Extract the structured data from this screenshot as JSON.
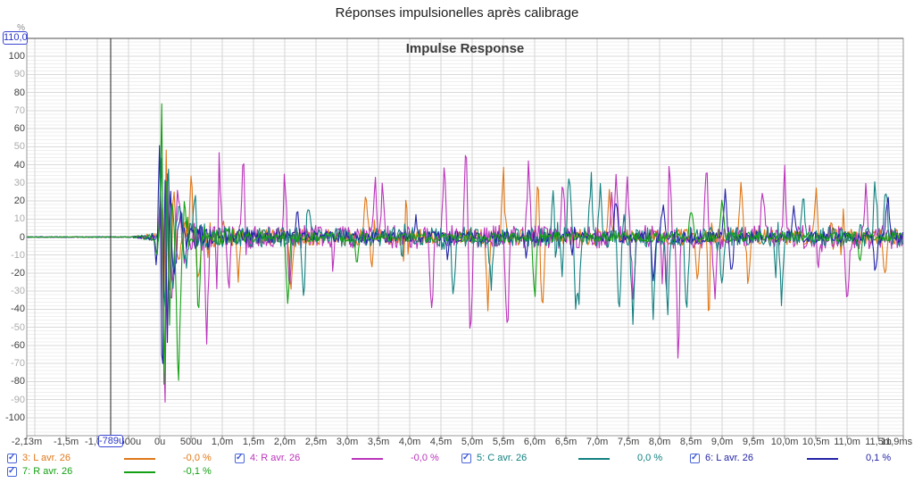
{
  "page": {
    "title": "Réponses impulsionelles après calibrage"
  },
  "chart": {
    "title": "Impulse Response",
    "y_axis": {
      "unit": "%",
      "top_box_value": "110,0"
    },
    "cursor": {
      "label": "-789u"
    }
  },
  "chart_data": {
    "type": "line",
    "title": "Impulse Response",
    "x_unit": "ms",
    "x_range_ms": [
      -2.13,
      11.9
    ],
    "ylim": [
      -110,
      110
    ],
    "y_unit": "%",
    "grid": {
      "minor_y_step": 2,
      "major_y_step": 10,
      "major_x_step_ms": 0.5
    },
    "cursor": {
      "t": -0.789,
      "label": "-789u"
    },
    "y_ticks": [
      {
        "v": 100,
        "label": "100"
      },
      {
        "v": 90,
        "label": "90"
      },
      {
        "v": 80,
        "label": "80"
      },
      {
        "v": 70,
        "label": "70"
      },
      {
        "v": 60,
        "label": "60"
      },
      {
        "v": 50,
        "label": "50"
      },
      {
        "v": 40,
        "label": "40"
      },
      {
        "v": 30,
        "label": "30"
      },
      {
        "v": 20,
        "label": "20"
      },
      {
        "v": 10,
        "label": "10"
      },
      {
        "v": 0,
        "label": "0"
      },
      {
        "v": -10,
        "label": "-10"
      },
      {
        "v": -20,
        "label": "-20"
      },
      {
        "v": -30,
        "label": "-30"
      },
      {
        "v": -40,
        "label": "-40"
      },
      {
        "v": -50,
        "label": "-50"
      },
      {
        "v": -60,
        "label": "-60"
      },
      {
        "v": -70,
        "label": "-70"
      },
      {
        "v": -80,
        "label": "-80"
      },
      {
        "v": -90,
        "label": "-90"
      },
      {
        "v": -100,
        "label": "-100"
      }
    ],
    "x_ticks": [
      {
        "t": -2.13,
        "label": "-2,13m"
      },
      {
        "t": -1.5,
        "label": "-1,5m"
      },
      {
        "t": -1.0,
        "label": "-1,0m"
      },
      {
        "t": -0.5,
        "label": "-500u"
      },
      {
        "t": 0,
        "label": "0u"
      },
      {
        "t": 0.5,
        "label": "500u"
      },
      {
        "t": 1.0,
        "label": "1,0m"
      },
      {
        "t": 1.5,
        "label": "1,5m"
      },
      {
        "t": 2.0,
        "label": "2,0m"
      },
      {
        "t": 2.5,
        "label": "2,5m"
      },
      {
        "t": 3.0,
        "label": "3,0m"
      },
      {
        "t": 3.5,
        "label": "3,5m"
      },
      {
        "t": 4.0,
        "label": "4,0m"
      },
      {
        "t": 4.5,
        "label": "4,5m"
      },
      {
        "t": 5.0,
        "label": "5,0m"
      },
      {
        "t": 5.5,
        "label": "5,5m"
      },
      {
        "t": 6.0,
        "label": "6,0m"
      },
      {
        "t": 6.5,
        "label": "6,5m"
      },
      {
        "t": 7.0,
        "label": "7,0m"
      },
      {
        "t": 7.5,
        "label": "7,5m"
      },
      {
        "t": 8.0,
        "label": "8,0m"
      },
      {
        "t": 8.5,
        "label": "8,5m"
      },
      {
        "t": 9.0,
        "label": "9,0m"
      },
      {
        "t": 9.5,
        "label": "9,5m"
      },
      {
        "t": 10.0,
        "label": "10,0m"
      },
      {
        "t": 10.5,
        "label": "10,5m"
      },
      {
        "t": 11.0,
        "label": "11,0m"
      },
      {
        "t": 11.5,
        "label": "11,5m"
      },
      {
        "t": 11.9,
        "label": "11,9ms",
        "align": "right"
      }
    ],
    "series": [
      {
        "name": "3: L avr. 26",
        "color": "#E07818",
        "legend_value": "-0,0 %",
        "seed": 11,
        "sigma": 4.5,
        "spike_rate": 0.01,
        "spike_max": 34,
        "burst": [
          [
            -0.02,
            0
          ],
          [
            0.02,
            30
          ],
          [
            0.06,
            -50
          ],
          [
            0.1,
            48
          ],
          [
            0.15,
            -35
          ],
          [
            0.22,
            22
          ],
          [
            0.3,
            -18
          ],
          [
            0.4,
            10
          ]
        ],
        "spikes": [
          [
            0.5,
            30
          ],
          [
            0.62,
            -26
          ],
          [
            1.25,
            -22
          ],
          [
            2.1,
            -28
          ],
          [
            3.3,
            26
          ],
          [
            5.25,
            -40
          ],
          [
            5.5,
            31
          ],
          [
            6.05,
            33
          ],
          [
            6.12,
            -43
          ],
          [
            7.2,
            25
          ],
          [
            8.6,
            -28
          ],
          [
            9.3,
            34
          ],
          [
            9.42,
            -28
          ],
          [
            10.5,
            29
          ],
          [
            10.9,
            24
          ],
          [
            11.6,
            -26
          ]
        ]
      },
      {
        "name": "4: R avr. 26",
        "color": "#BB33BB",
        "legend_value": "-0,0 %",
        "seed": 22,
        "sigma": 6.5,
        "spike_rate": 0.015,
        "spike_max": 42,
        "burst": [
          [
            -0.02,
            0
          ],
          [
            0.01,
            25
          ],
          [
            0.05,
            -42
          ],
          [
            0.08,
            -98
          ],
          [
            0.12,
            35
          ],
          [
            0.18,
            -45
          ],
          [
            0.28,
            28
          ],
          [
            0.4,
            -18
          ]
        ],
        "spikes": [
          [
            0.75,
            -52
          ],
          [
            0.95,
            33
          ],
          [
            1.1,
            -33
          ],
          [
            1.32,
            30
          ],
          [
            2.0,
            36
          ],
          [
            2.07,
            -32
          ],
          [
            3.45,
            30
          ],
          [
            3.56,
            27
          ],
          [
            4.35,
            -44
          ],
          [
            4.55,
            38
          ],
          [
            4.9,
            52
          ],
          [
            4.97,
            -65
          ],
          [
            5.55,
            -43
          ],
          [
            5.9,
            38
          ],
          [
            6.45,
            30
          ],
          [
            7.3,
            32
          ],
          [
            7.48,
            32
          ],
          [
            7.58,
            -34
          ],
          [
            8.16,
            40
          ],
          [
            8.3,
            -44
          ],
          [
            8.75,
            40
          ],
          [
            8.88,
            -38
          ],
          [
            9.65,
            30
          ],
          [
            10.0,
            38
          ],
          [
            10.55,
            -30
          ],
          [
            11.0,
            -40
          ],
          [
            11.3,
            32
          ]
        ]
      },
      {
        "name": "5: C avr. 26",
        "color": "#128080",
        "legend_value": "0,0 %",
        "seed": 33,
        "sigma": 5.5,
        "spike_rate": 0.013,
        "spike_max": 38,
        "burst": [
          [
            -0.02,
            0
          ],
          [
            0.03,
            40
          ],
          [
            0.08,
            -54
          ],
          [
            0.13,
            44
          ],
          [
            0.2,
            -30
          ],
          [
            0.3,
            24
          ],
          [
            0.42,
            -15
          ]
        ],
        "spikes": [
          [
            0.55,
            28
          ],
          [
            2.3,
            -38
          ],
          [
            2.38,
            24
          ],
          [
            4.7,
            -36
          ],
          [
            5.3,
            -28
          ],
          [
            6.3,
            34
          ],
          [
            6.55,
            38
          ],
          [
            6.7,
            -50
          ],
          [
            6.9,
            36
          ],
          [
            7.05,
            30
          ],
          [
            7.35,
            -50
          ],
          [
            7.57,
            -52
          ],
          [
            7.9,
            -45
          ],
          [
            8.13,
            -42
          ],
          [
            8.43,
            -46
          ],
          [
            9.0,
            -33
          ],
          [
            9.95,
            -34
          ],
          [
            10.3,
            27
          ],
          [
            11.45,
            34
          ],
          [
            11.62,
            30
          ]
        ]
      },
      {
        "name": "6: L avr. 26",
        "color": "#2424A8",
        "legend_value": "0,1 %",
        "seed": 44,
        "sigma": 3.2,
        "spike_rate": 0.005,
        "spike_max": 20,
        "burst": [
          [
            -0.05,
            -18
          ],
          [
            0.0,
            58
          ],
          [
            0.04,
            -98
          ],
          [
            0.08,
            36
          ],
          [
            0.12,
            -58
          ],
          [
            0.16,
            30
          ],
          [
            0.22,
            -24
          ],
          [
            0.32,
            14
          ]
        ],
        "spikes": [
          [
            2.2,
            14
          ],
          [
            4.1,
            11
          ],
          [
            7.3,
            22
          ],
          [
            7.9,
            -26
          ],
          [
            8.05,
            20
          ],
          [
            9.05,
            26
          ],
          [
            9.15,
            -22
          ],
          [
            10.15,
            18
          ],
          [
            11.45,
            -22
          ],
          [
            11.65,
            26
          ]
        ]
      },
      {
        "name": "7: R avr. 26",
        "color": "#14A014",
        "legend_value": "-0,1 %",
        "seed": 55,
        "sigma": 2.8,
        "spike_rate": 0.004,
        "spike_max": 16,
        "burst": [
          [
            -0.03,
            -14
          ],
          [
            0.03,
            66
          ],
          [
            0.07,
            -96
          ],
          [
            0.11,
            55
          ],
          [
            0.15,
            -58
          ],
          [
            0.2,
            30
          ],
          [
            0.28,
            -46
          ],
          [
            0.4,
            18
          ]
        ],
        "spikes": [
          [
            0.3,
            -46
          ],
          [
            0.62,
            -44
          ],
          [
            2.05,
            -40
          ],
          [
            3.15,
            -18
          ],
          [
            6.0,
            -38
          ],
          [
            8.5,
            18
          ],
          [
            9.0,
            24
          ],
          [
            11.2,
            -14
          ]
        ]
      }
    ]
  },
  "legend": {
    "entries": [
      {
        "label": "3: L avr. 26",
        "value": "-0,0 %",
        "color": "#E07818",
        "checked": true
      },
      {
        "label": "4: R avr. 26",
        "value": "-0,0 %",
        "color": "#BB33BB",
        "checked": true
      },
      {
        "label": "5: C avr. 26",
        "value": "0,0 %",
        "color": "#128080",
        "checked": true
      },
      {
        "label": "6: L avr. 26",
        "value": "0,1 %",
        "color": "#2424A8",
        "checked": true
      },
      {
        "label": "7: R avr. 26",
        "value": "-0,1 %",
        "color": "#14A014",
        "checked": true
      }
    ],
    "check_glyph": "✓"
  }
}
